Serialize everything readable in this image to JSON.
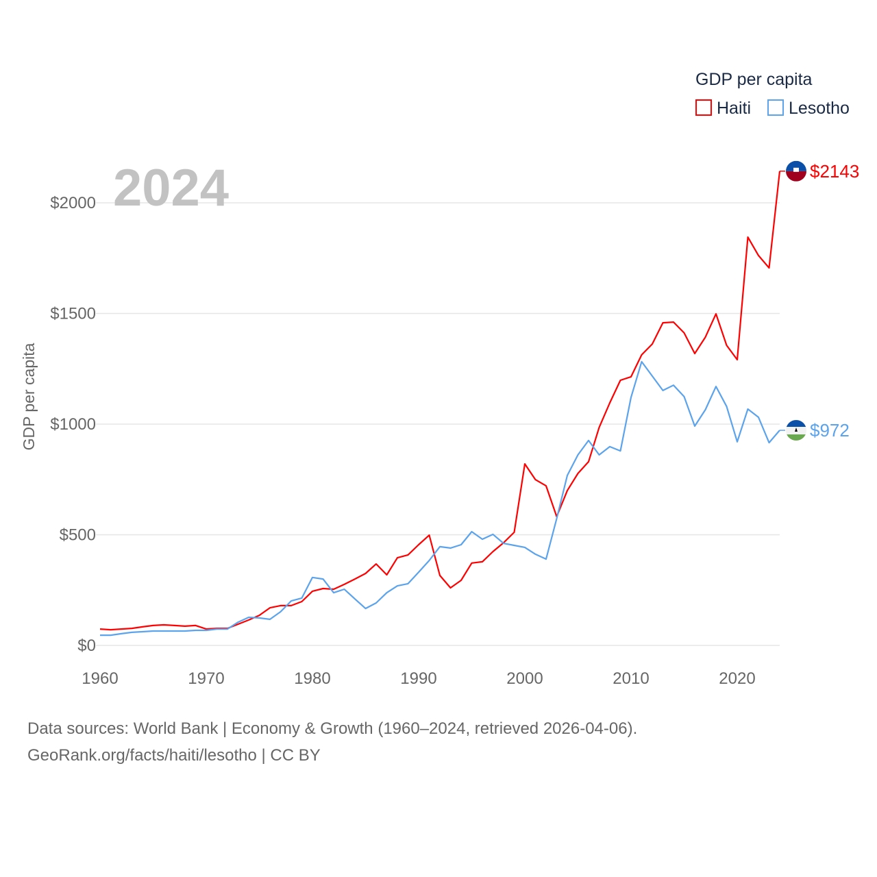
{
  "chart_data": {
    "type": "line",
    "title": "GDP per capita",
    "xlabel": "",
    "ylabel": "GDP per capita",
    "year_label": "2024",
    "xlim": [
      1960,
      2024
    ],
    "ylim": [
      0,
      2200
    ],
    "grid": true,
    "legend_placement": "top-right",
    "x_ticks": [
      1960,
      1970,
      1980,
      1990,
      2000,
      2010,
      2020
    ],
    "x_tick_labels": [
      "1960",
      "1970",
      "1980",
      "1990",
      "2000",
      "2010",
      "2020"
    ],
    "y_ticks": [
      0,
      500,
      1000,
      1500,
      2000
    ],
    "y_tick_labels": [
      "$0",
      "$500",
      "$1000",
      "$1500",
      "$2000"
    ],
    "x": [
      1960,
      1961,
      1962,
      1963,
      1964,
      1965,
      1966,
      1967,
      1968,
      1969,
      1970,
      1971,
      1972,
      1973,
      1974,
      1975,
      1976,
      1977,
      1978,
      1979,
      1980,
      1981,
      1982,
      1983,
      1984,
      1985,
      1986,
      1987,
      1988,
      1989,
      1990,
      1991,
      1992,
      1993,
      1994,
      1995,
      1996,
      1997,
      1998,
      1999,
      2000,
      2001,
      2002,
      2003,
      2004,
      2005,
      2006,
      2007,
      2008,
      2009,
      2010,
      2011,
      2012,
      2013,
      2014,
      2015,
      2016,
      2017,
      2018,
      2019,
      2020,
      2021,
      2022,
      2023,
      2024
    ],
    "series": [
      {
        "name": "Haiti",
        "color": "#ff0000",
        "end_label": "$2143",
        "flag": [
          "#0a4fa8",
          "#a0001e"
        ],
        "values": [
          74,
          71,
          74,
          77,
          84,
          90,
          93,
          90,
          87,
          90,
          74,
          77,
          77,
          96,
          115,
          136,
          170,
          180,
          180,
          198,
          245,
          257,
          254,
          276,
          300,
          325,
          368,
          319,
          396,
          409,
          455,
          498,
          316,
          260,
          294,
          372,
          378,
          424,
          464,
          511,
          820,
          749,
          721,
          582,
          700,
          777,
          830,
          985,
          1096,
          1198,
          1214,
          1313,
          1362,
          1458,
          1461,
          1412,
          1319,
          1393,
          1498,
          1356,
          1291,
          1845,
          1762,
          1706,
          2143
        ]
      },
      {
        "name": "Lesotho",
        "color": "#5ba3ec",
        "end_label": "$972",
        "flag": [
          "#0a4fa8",
          "#f2f2f2",
          "#6aa84f"
        ],
        "values": [
          46,
          46,
          53,
          59,
          62,
          65,
          65,
          65,
          65,
          68,
          68,
          74,
          74,
          105,
          127,
          124,
          118,
          152,
          201,
          214,
          307,
          300,
          238,
          254,
          210,
          167,
          192,
          238,
          269,
          279,
          331,
          384,
          446,
          440,
          455,
          514,
          480,
          502,
          461,
          452,
          443,
          412,
          390,
          573,
          768,
          861,
          926,
          861,
          898,
          879,
          1121,
          1282,
          1217,
          1152,
          1176,
          1124,
          991,
          1065,
          1170,
          1080,
          920,
          1068,
          1031,
          916,
          972
        ]
      }
    ]
  },
  "footer": {
    "line1": "Data sources: World Bank | Economy & Growth (1960–2024, retrieved 2026-04-06).",
    "line2": "GeoRank.org/facts/haiti/lesotho | CC BY"
  }
}
